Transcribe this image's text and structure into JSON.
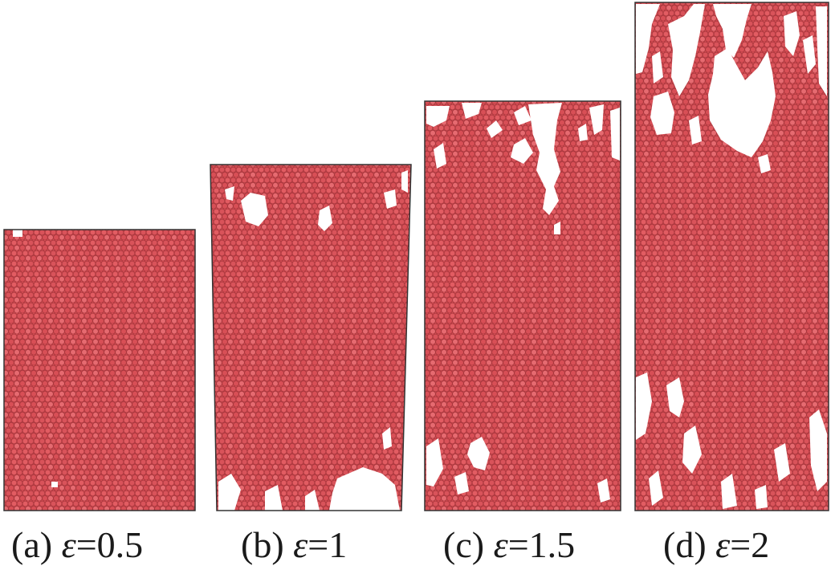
{
  "figure": {
    "particle_color": "#d94f55",
    "particle_edge_color": "#a8363c",
    "frame_color": "#333333",
    "panels": [
      {
        "id": "a",
        "caption_prefix": "(a) ",
        "symbol": "ε",
        "caption_suffix": "=0.5",
        "strain": 0.5
      },
      {
        "id": "b",
        "caption_prefix": "(b) ",
        "symbol": "ε",
        "caption_suffix": "=1",
        "strain": 1
      },
      {
        "id": "c",
        "caption_prefix": "(c) ",
        "symbol": "ε",
        "caption_suffix": "=1.5",
        "strain": 1.5
      },
      {
        "id": "d",
        "caption_prefix": "(d) ",
        "symbol": "ε",
        "caption_suffix": "=2",
        "strain": 2
      }
    ]
  }
}
